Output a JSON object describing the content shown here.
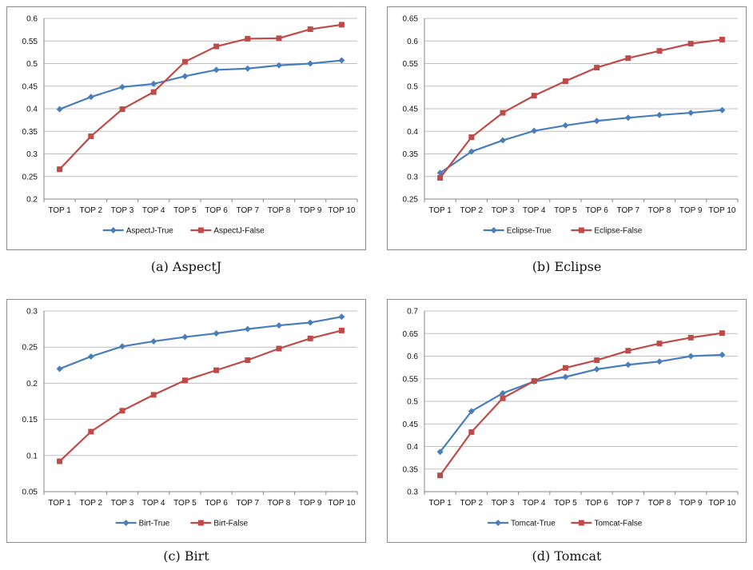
{
  "colors": {
    "true_series": "#4a7ebb",
    "false_series": "#be4b48",
    "grid": "#bfbfbf",
    "axis": "#868686"
  },
  "chart_data": [
    {
      "type": "line",
      "caption": "(a) AspectJ",
      "categories": [
        "TOP 1",
        "TOP 2",
        "TOP 3",
        "TOP 4",
        "TOP 5",
        "TOP 6",
        "TOP 7",
        "TOP 8",
        "TOP 9",
        "TOP 10"
      ],
      "ylim": [
        0.2,
        0.6
      ],
      "yticks": [
        0.2,
        0.25,
        0.3,
        0.35,
        0.4,
        0.45,
        0.5,
        0.55,
        0.6
      ],
      "ytick_labels": [
        "0.2",
        "0.25",
        "0.3",
        "0.35",
        "0.4",
        "0.45",
        "0.5",
        "0.55",
        "0.6"
      ],
      "grid": true,
      "legend": "bottom",
      "series": [
        {
          "name": "AspectJ-True",
          "marker": "diamond",
          "values": [
            0.399,
            0.426,
            0.448,
            0.455,
            0.472,
            0.486,
            0.489,
            0.496,
            0.5,
            0.507
          ]
        },
        {
          "name": "AspectJ-False",
          "marker": "square",
          "values": [
            0.266,
            0.339,
            0.399,
            0.437,
            0.504,
            0.538,
            0.555,
            0.556,
            0.576,
            0.586
          ]
        }
      ]
    },
    {
      "type": "line",
      "caption": "(b) Eclipse",
      "categories": [
        "TOP 1",
        "TOP 2",
        "TOP 3",
        "TOP 4",
        "TOP 5",
        "TOP 6",
        "TOP 7",
        "TOP 8",
        "TOP 9",
        "TOP 10"
      ],
      "ylim": [
        0.25,
        0.65
      ],
      "yticks": [
        0.25,
        0.3,
        0.35,
        0.4,
        0.45,
        0.5,
        0.55,
        0.6,
        0.65
      ],
      "ytick_labels": [
        "0.25",
        "0.3",
        "0.35",
        "0.4",
        "0.45",
        "0.5",
        "0.55",
        "0.6",
        "0.65"
      ],
      "grid": true,
      "legend": "bottom",
      "series": [
        {
          "name": "Eclipse-True",
          "marker": "diamond",
          "values": [
            0.308,
            0.355,
            0.38,
            0.401,
            0.413,
            0.423,
            0.43,
            0.436,
            0.441,
            0.447
          ]
        },
        {
          "name": "Eclipse-False",
          "marker": "square",
          "values": [
            0.297,
            0.387,
            0.441,
            0.479,
            0.511,
            0.541,
            0.562,
            0.578,
            0.594,
            0.603
          ]
        }
      ]
    },
    {
      "type": "line",
      "caption": "(c) Birt",
      "categories": [
        "TOP 1",
        "TOP 2",
        "TOP 3",
        "TOP 4",
        "TOP 5",
        "TOP 6",
        "TOP 7",
        "TOP 8",
        "TOP 9",
        "TOP 10"
      ],
      "ylim": [
        0.05,
        0.3
      ],
      "yticks": [
        0.05,
        0.1,
        0.15,
        0.2,
        0.25,
        0.3
      ],
      "ytick_labels": [
        "0.05",
        "0.1",
        "0.15",
        "0.2",
        "0.25",
        "0.3"
      ],
      "grid": true,
      "legend": "bottom",
      "series": [
        {
          "name": "Birt-True",
          "marker": "diamond",
          "values": [
            0.22,
            0.237,
            0.251,
            0.258,
            0.264,
            0.269,
            0.275,
            0.28,
            0.284,
            0.292
          ]
        },
        {
          "name": "Birt-False",
          "marker": "square",
          "values": [
            0.092,
            0.133,
            0.162,
            0.184,
            0.204,
            0.218,
            0.232,
            0.248,
            0.262,
            0.273
          ]
        }
      ]
    },
    {
      "type": "line",
      "caption": "(d) Tomcat",
      "categories": [
        "TOP 1",
        "TOP 2",
        "TOP 3",
        "TOP 4",
        "TOP 5",
        "TOP 6",
        "TOP 7",
        "TOP 8",
        "TOP 9",
        "TOP 10"
      ],
      "ylim": [
        0.3,
        0.7
      ],
      "yticks": [
        0.3,
        0.35,
        0.4,
        0.45,
        0.5,
        0.55,
        0.6,
        0.65,
        0.7
      ],
      "ytick_labels": [
        "0.3",
        "0.35",
        "0.4",
        "0.45",
        "0.5",
        "0.55",
        "0.6",
        "0.65",
        "0.7"
      ],
      "grid": true,
      "legend": "bottom",
      "series": [
        {
          "name": "Tomcat-True",
          "marker": "diamond",
          "values": [
            0.388,
            0.478,
            0.518,
            0.544,
            0.554,
            0.571,
            0.581,
            0.588,
            0.6,
            0.603
          ]
        },
        {
          "name": "Tomcat-False",
          "marker": "square",
          "values": [
            0.336,
            0.432,
            0.507,
            0.545,
            0.574,
            0.591,
            0.612,
            0.628,
            0.641,
            0.651
          ]
        }
      ]
    }
  ]
}
